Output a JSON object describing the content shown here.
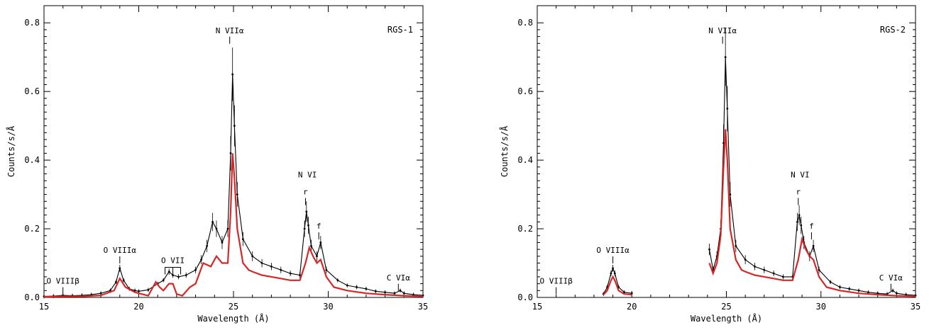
{
  "chart_data": [
    {
      "type": "line",
      "panel_label": "RGS-1",
      "xlabel": "Wavelength (Å)",
      "ylabel": "Counts/s/Å",
      "xlim": [
        15,
        35
      ],
      "ylim": [
        0,
        0.85
      ],
      "x_ticks": [
        15,
        20,
        25,
        30,
        35
      ],
      "y_ticks": [
        0.0,
        0.2,
        0.4,
        0.6,
        0.8
      ],
      "colors": {
        "data": "#000000",
        "model": "#d62728"
      },
      "line_labels": [
        {
          "text": "O VIIIβ",
          "x": 16.0,
          "y": 0.04
        },
        {
          "text": "O VIIIα",
          "x": 19.0,
          "y": 0.13
        },
        {
          "text": "O VII",
          "x": 21.8,
          "y": 0.1
        },
        {
          "text": "N VIIα",
          "x": 24.8,
          "y": 0.77
        },
        {
          "text": "N VI",
          "x": 28.9,
          "y": 0.35
        },
        {
          "text": "r",
          "x": 28.8,
          "y": 0.3
        },
        {
          "text": "f",
          "x": 29.5,
          "y": 0.2
        },
        {
          "text": "C VIα",
          "x": 33.7,
          "y": 0.05
        }
      ],
      "series": [
        {
          "name": "data",
          "x": [
            15.0,
            15.5,
            16.0,
            16.5,
            17.0,
            17.5,
            18.0,
            18.5,
            18.8,
            19.0,
            19.2,
            19.5,
            19.8,
            20.0,
            20.5,
            21.0,
            21.3,
            21.6,
            21.8,
            22.1,
            22.5,
            23.0,
            23.3,
            23.6,
            23.9,
            24.1,
            24.4,
            24.7,
            24.85,
            24.95,
            25.05,
            25.2,
            25.5,
            26.0,
            26.5,
            27.0,
            27.5,
            28.0,
            28.5,
            28.75,
            28.85,
            28.95,
            29.1,
            29.4,
            29.6,
            29.9,
            30.5,
            31.0,
            31.5,
            32.0,
            32.5,
            33.0,
            33.5,
            33.8,
            34.0,
            34.5,
            35.0
          ],
          "y": [
            0.003,
            0.004,
            0.006,
            0.005,
            0.006,
            0.008,
            0.012,
            0.02,
            0.045,
            0.085,
            0.05,
            0.025,
            0.02,
            0.018,
            0.022,
            0.04,
            0.05,
            0.075,
            0.065,
            0.06,
            0.065,
            0.08,
            0.11,
            0.15,
            0.22,
            0.2,
            0.16,
            0.2,
            0.42,
            0.65,
            0.5,
            0.3,
            0.17,
            0.12,
            0.1,
            0.09,
            0.08,
            0.07,
            0.065,
            0.2,
            0.25,
            0.21,
            0.15,
            0.12,
            0.16,
            0.08,
            0.05,
            0.035,
            0.03,
            0.025,
            0.018,
            0.015,
            0.012,
            0.02,
            0.012,
            0.008,
            0.006
          ]
        },
        {
          "name": "model",
          "x": [
            15.0,
            16.0,
            17.0,
            18.0,
            18.7,
            19.0,
            19.3,
            19.8,
            20.0,
            20.5,
            20.9,
            21.1,
            21.3,
            21.6,
            21.8,
            22.0,
            22.3,
            22.7,
            23.0,
            23.4,
            23.8,
            24.1,
            24.4,
            24.7,
            24.85,
            24.95,
            25.05,
            25.2,
            25.5,
            25.8,
            26.0,
            26.5,
            27.0,
            27.5,
            28.0,
            28.5,
            28.8,
            29.0,
            29.2,
            29.4,
            29.6,
            29.9,
            30.3,
            31.0,
            32.0,
            33.0,
            34.0,
            35.0
          ],
          "y": [
            0.002,
            0.003,
            0.003,
            0.006,
            0.02,
            0.055,
            0.03,
            0.015,
            0.012,
            0.005,
            0.045,
            0.03,
            0.02,
            0.04,
            0.04,
            0.01,
            0.005,
            0.03,
            0.04,
            0.1,
            0.09,
            0.12,
            0.1,
            0.1,
            0.25,
            0.42,
            0.35,
            0.2,
            0.1,
            0.08,
            0.075,
            0.065,
            0.06,
            0.055,
            0.05,
            0.05,
            0.1,
            0.145,
            0.12,
            0.1,
            0.11,
            0.06,
            0.03,
            0.02,
            0.012,
            0.008,
            0.005,
            0.003
          ]
        }
      ]
    },
    {
      "type": "line",
      "panel_label": "RGS-2",
      "xlabel": "Wavelength (Å)",
      "ylabel": "Counts/s/Å",
      "xlim": [
        15,
        35
      ],
      "ylim": [
        0,
        0.85
      ],
      "x_ticks": [
        15,
        20,
        25,
        30,
        35
      ],
      "y_ticks": [
        0.0,
        0.2,
        0.4,
        0.6,
        0.8
      ],
      "colors": {
        "data": "#000000",
        "model": "#d62728"
      },
      "line_labels": [
        {
          "text": "O VIIIβ",
          "x": 16.0,
          "y": 0.04
        },
        {
          "text": "O VIIIα",
          "x": 19.0,
          "y": 0.13
        },
        {
          "text": "N VIIα",
          "x": 24.8,
          "y": 0.77
        },
        {
          "text": "N VI",
          "x": 28.9,
          "y": 0.35
        },
        {
          "text": "r",
          "x": 28.8,
          "y": 0.3
        },
        {
          "text": "f",
          "x": 29.5,
          "y": 0.2
        },
        {
          "text": "C VIα",
          "x": 33.7,
          "y": 0.05
        }
      ],
      "series": [
        {
          "name": "data",
          "segments": [
            {
              "x": [
                18.5,
                18.7,
                18.9,
                19.0,
                19.1,
                19.3,
                19.6,
                20.0
              ],
              "y": [
                0.01,
                0.03,
                0.07,
                0.085,
                0.07,
                0.03,
                0.015,
                0.012
              ]
            },
            {
              "x": [
                24.1,
                24.3,
                24.5,
                24.7,
                24.85,
                24.95,
                25.05,
                25.2,
                25.5,
                26.0,
                26.5,
                27.0,
                27.5,
                28.0,
                28.5,
                28.75,
                28.85,
                28.95,
                29.1,
                29.4,
                29.6,
                29.9,
                30.5,
                31.0,
                31.5,
                32.0,
                32.5,
                33.0,
                33.5,
                33.8,
                34.0,
                34.5,
                35.0
              ],
              "y": [
                0.14,
                0.08,
                0.12,
                0.2,
                0.45,
                0.7,
                0.55,
                0.3,
                0.15,
                0.11,
                0.09,
                0.08,
                0.07,
                0.06,
                0.06,
                0.22,
                0.24,
                0.21,
                0.16,
                0.12,
                0.15,
                0.08,
                0.045,
                0.03,
                0.025,
                0.02,
                0.015,
                0.012,
                0.01,
                0.02,
                0.012,
                0.008,
                0.006
              ]
            }
          ]
        },
        {
          "name": "model",
          "segments": [
            {
              "x": [
                18.5,
                18.7,
                18.9,
                19.0,
                19.1,
                19.3,
                19.6,
                20.0
              ],
              "y": [
                0.008,
                0.02,
                0.05,
                0.06,
                0.05,
                0.02,
                0.01,
                0.008
              ]
            },
            {
              "x": [
                24.1,
                24.3,
                24.5,
                24.7,
                24.85,
                24.95,
                25.05,
                25.2,
                25.5,
                25.8,
                26.0,
                26.5,
                27.0,
                27.5,
                28.0,
                28.5,
                28.8,
                29.0,
                29.2,
                29.4,
                29.6,
                29.9,
                30.3,
                31.0,
                32.0,
                33.0,
                34.0,
                35.0
              ],
              "y": [
                0.1,
                0.07,
                0.1,
                0.18,
                0.38,
                0.49,
                0.4,
                0.2,
                0.11,
                0.08,
                0.075,
                0.065,
                0.06,
                0.055,
                0.05,
                0.05,
                0.11,
                0.17,
                0.14,
                0.12,
                0.11,
                0.06,
                0.03,
                0.02,
                0.012,
                0.008,
                0.005,
                0.003
              ]
            }
          ]
        }
      ]
    }
  ]
}
